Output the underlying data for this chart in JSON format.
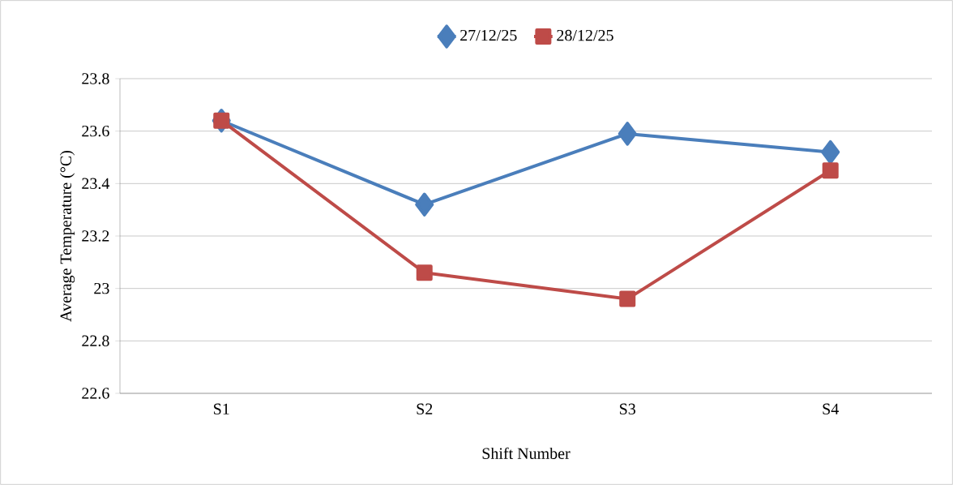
{
  "chart_data": {
    "type": "line",
    "xlabel": "Shift Number",
    "ylabel": "Average Temperature (°C)",
    "categories": [
      "S1",
      "S2",
      "S3",
      "S4"
    ],
    "series": [
      {
        "name": "27/12/25",
        "color": "#4a7ebb",
        "marker": "diamond",
        "values": [
          23.64,
          23.32,
          23.59,
          23.52
        ]
      },
      {
        "name": "28/12/25",
        "color": "#be4b48",
        "marker": "square",
        "values": [
          23.64,
          23.06,
          22.96,
          23.45
        ]
      }
    ],
    "ylim": [
      22.6,
      23.8
    ],
    "yticks": [
      22.6,
      22.8,
      23,
      23.2,
      23.4,
      23.6,
      23.8
    ],
    "grid": "y",
    "legend": "top",
    "line_style": "solid"
  }
}
